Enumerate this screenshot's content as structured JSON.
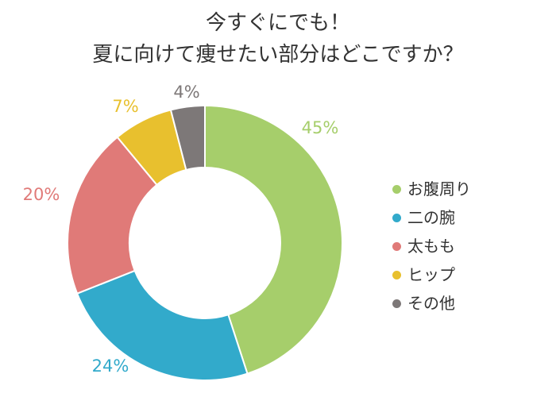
{
  "chart_data": {
    "type": "pie",
    "donut": true,
    "title": [
      "今すぐにでも！",
      "夏に向けて痩せたい部分はどこですか？"
    ],
    "categories": [
      "お腹周り",
      "二の腕",
      "太もも",
      "ヒップ",
      "その他"
    ],
    "values": [
      45,
      24,
      20,
      7,
      4
    ],
    "labels": [
      "45%",
      "24%",
      "20%",
      "7%",
      "4%"
    ],
    "colors": [
      "#a6ce6b",
      "#32aacb",
      "#e07a78",
      "#e8c02e",
      "#7d7878"
    ],
    "legend_position": "right"
  }
}
